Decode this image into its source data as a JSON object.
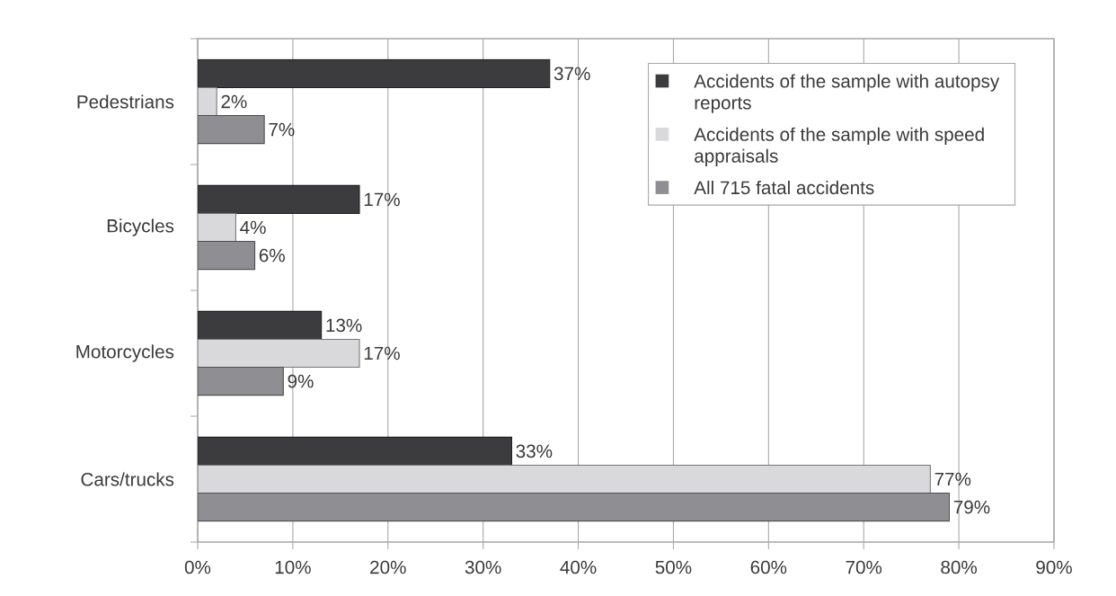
{
  "chart_data": {
    "type": "bar",
    "orientation": "horizontal",
    "categories": [
      "Pedestrians",
      "Bicycles",
      "Motorcycles",
      "Cars/trucks"
    ],
    "series": [
      {
        "name": "Accidents of the sample with autopsy reports",
        "color": "#3c3c3e",
        "values": [
          37,
          17,
          13,
          33
        ],
        "value_labels": [
          "37%",
          "17%",
          "13%",
          "33%"
        ]
      },
      {
        "name": "Accidents of the sample with speed appraisals",
        "color": "#d9d9db",
        "values": [
          2,
          4,
          17,
          77
        ],
        "value_labels": [
          "2%",
          "4%",
          "17%",
          "77%"
        ]
      },
      {
        "name": "All 715 fatal accidents",
        "color": "#8f8f93",
        "values": [
          7,
          6,
          9,
          79
        ],
        "value_labels": [
          "7%",
          "6%",
          "9%",
          "79%"
        ]
      }
    ],
    "xlim": [
      0,
      90
    ],
    "xticks": [
      {
        "value": 0,
        "label": "0%"
      },
      {
        "value": 10,
        "label": "10%"
      },
      {
        "value": 20,
        "label": "20%"
      },
      {
        "value": 30,
        "label": "30%"
      },
      {
        "value": 40,
        "label": "40%"
      },
      {
        "value": 50,
        "label": "50%"
      },
      {
        "value": 60,
        "label": "60%"
      },
      {
        "value": 70,
        "label": "70%"
      },
      {
        "value": 80,
        "label": "80%"
      },
      {
        "value": 90,
        "label": "90%"
      }
    ],
    "grid": "x",
    "legend": "top right"
  }
}
